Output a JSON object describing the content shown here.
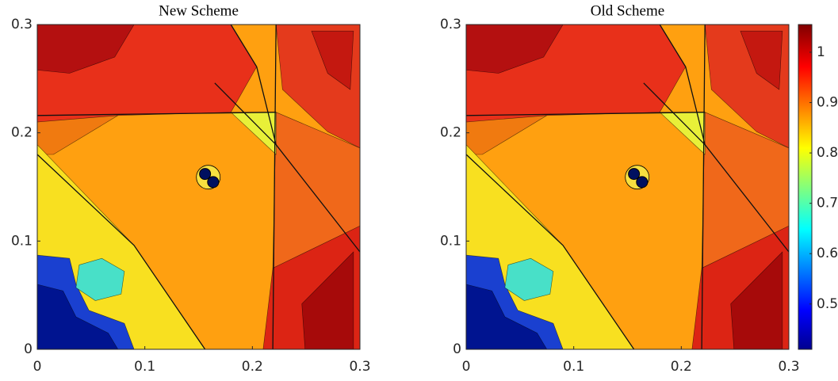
{
  "chart_data": [
    {
      "type": "contour",
      "title": "New Scheme",
      "xlim": [
        0,
        0.3
      ],
      "ylim": [
        0,
        0.3
      ],
      "xticks": [
        0,
        0.1,
        0.2,
        0.3
      ],
      "yticks": [
        0,
        0.1,
        0.2,
        0.3
      ]
    },
    {
      "type": "contour",
      "title": "Old Scheme",
      "xlim": [
        0,
        0.3
      ],
      "ylim": [
        0,
        0.3
      ],
      "xticks": [
        0,
        0.1,
        0.2,
        0.3
      ],
      "yticks": [
        0,
        0.1,
        0.2,
        0.3
      ],
      "colorbar": {
        "colormap": "jet",
        "clim": [
          0.41,
          1.055
        ],
        "ticks": [
          0.5,
          0.6,
          0.7,
          0.8,
          0.9,
          1
        ]
      }
    }
  ]
}
